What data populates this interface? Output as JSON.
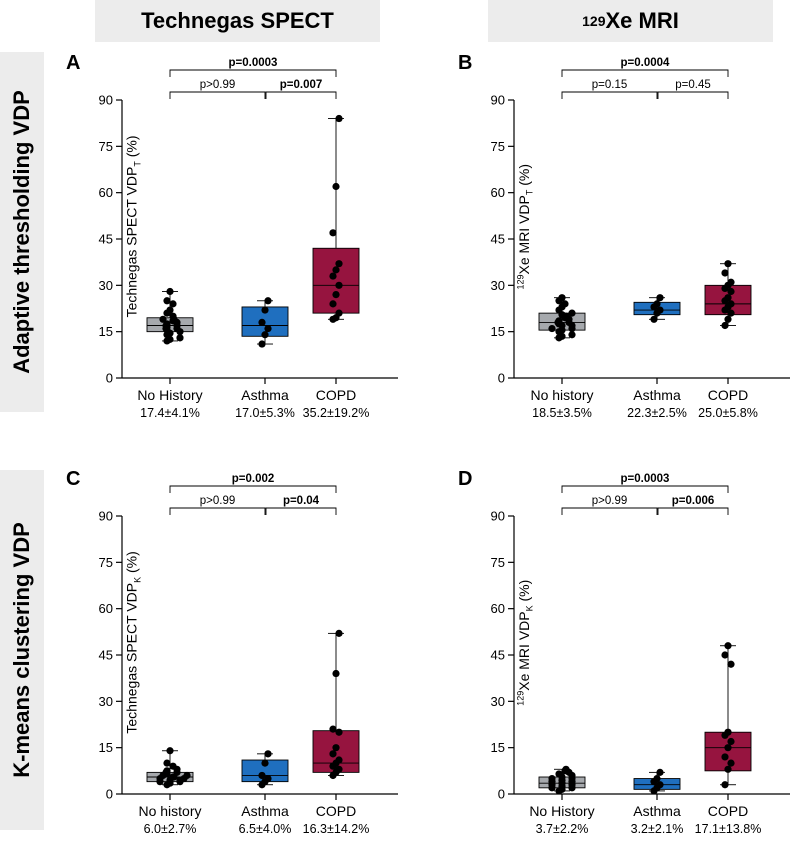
{
  "headers": {
    "col1": "Technegas SPECT",
    "col2_sup": "129",
    "col2_rest": "Xe MRI",
    "row1": "Adaptive thresholding VDP",
    "row2": "K-means clustering VDP"
  },
  "colors": {
    "no_history": "#a6a9ad",
    "asthma": "#1f6fbf",
    "copd": "#96143f",
    "header_bg": "#ececec"
  },
  "chart_data": [
    {
      "type": "boxplot",
      "panel": "A",
      "ylabel_main": "Technegas SPECT VDP",
      "ylabel_sub": "T",
      "ylabel_sup": "",
      "ylabel_end": " (%)",
      "ylim": [
        0,
        90
      ],
      "yticks": [
        "0",
        "15",
        "30",
        "45",
        "60",
        "75",
        "90"
      ],
      "categories": [
        "No History",
        "Asthma",
        "COPD"
      ],
      "stats": [
        "17.4±4.1%",
        "17.0±5.3%",
        "35.2±19.2%"
      ],
      "boxes": [
        {
          "min": 12,
          "q1": 15,
          "median": 17,
          "q3": 19.5,
          "max": 28,
          "points": [
            12,
            12.5,
            13,
            14,
            14.5,
            15,
            15.5,
            16,
            16,
            16.5,
            17,
            17,
            17.5,
            18,
            18.5,
            19,
            19,
            20,
            21,
            22,
            24,
            25,
            28
          ]
        },
        {
          "min": 11,
          "q1": 13.5,
          "median": 17,
          "q3": 23,
          "max": 25,
          "points": [
            11,
            14,
            16,
            18,
            22,
            25
          ]
        },
        {
          "min": 19,
          "q1": 21,
          "median": 30,
          "q3": 42,
          "max": 84,
          "points": [
            19,
            19.5,
            21,
            24,
            27,
            30,
            33,
            35,
            37,
            47,
            62,
            84
          ]
        }
      ],
      "brackets": [
        {
          "from": 0,
          "to": 2,
          "label": "p=0.0003",
          "bold": true,
          "level": 2
        },
        {
          "from": 0,
          "to": 1,
          "label": "p>0.99",
          "bold": false,
          "level": 1
        },
        {
          "from": 1,
          "to": 2,
          "label": "p=0.007",
          "bold": true,
          "level": 1
        }
      ]
    },
    {
      "type": "boxplot",
      "panel": "B",
      "ylabel_main": "Xe MRI VDP",
      "ylabel_sub": "T",
      "ylabel_sup": "129",
      "ylabel_end": " (%)",
      "ylim": [
        0,
        90
      ],
      "yticks": [
        "0",
        "15",
        "30",
        "45",
        "60",
        "75",
        "90"
      ],
      "categories": [
        "No history",
        "Asthma",
        "COPD"
      ],
      "stats": [
        "18.5±3.5%",
        "22.3±2.5%",
        "25.0±5.8%"
      ],
      "boxes": [
        {
          "min": 13,
          "q1": 15.5,
          "median": 18,
          "q3": 21,
          "max": 26,
          "points": [
            13,
            13.5,
            14,
            15,
            15.5,
            16,
            16,
            17,
            17,
            17.5,
            18,
            18,
            18.5,
            19,
            19.5,
            20,
            20.5,
            21,
            22,
            23,
            24,
            25,
            26
          ]
        },
        {
          "min": 19,
          "q1": 20.5,
          "median": 22,
          "q3": 24.5,
          "max": 26,
          "points": [
            19,
            21,
            22,
            23,
            24,
            26
          ]
        },
        {
          "min": 17,
          "q1": 20.5,
          "median": 24,
          "q3": 30,
          "max": 37,
          "points": [
            17,
            19,
            21,
            22,
            23,
            24,
            25,
            26,
            28,
            29,
            30,
            31,
            34,
            37
          ]
        }
      ],
      "brackets": [
        {
          "from": 0,
          "to": 2,
          "label": "p=0.0004",
          "bold": true,
          "level": 2
        },
        {
          "from": 0,
          "to": 1,
          "label": "p=0.15",
          "bold": false,
          "level": 1
        },
        {
          "from": 1,
          "to": 2,
          "label": "p=0.45",
          "bold": false,
          "level": 1
        }
      ]
    },
    {
      "type": "boxplot",
      "panel": "C",
      "ylabel_main": "Technegas SPECT VDP",
      "ylabel_sub": "K",
      "ylabel_sup": "",
      "ylabel_end": " (%)",
      "ylim": [
        0,
        90
      ],
      "yticks": [
        "0",
        "15",
        "30",
        "45",
        "60",
        "75",
        "90"
      ],
      "categories": [
        "No history",
        "Asthma",
        "COPD"
      ],
      "stats": [
        "6.0±2.7%",
        "6.5±4.0%",
        "16.3±14.2%"
      ],
      "boxes": [
        {
          "min": 3,
          "q1": 4,
          "median": 5.5,
          "q3": 7,
          "max": 14,
          "points": [
            3,
            3.5,
            4,
            4,
            4.5,
            4.5,
            5,
            5,
            5.5,
            5.5,
            6,
            6,
            6.5,
            7,
            7,
            7.5,
            8,
            9,
            10,
            14
          ]
        },
        {
          "min": 3,
          "q1": 4,
          "median": 6,
          "q3": 11,
          "max": 13,
          "points": [
            3,
            4,
            5,
            6,
            10,
            13
          ]
        },
        {
          "min": 6,
          "q1": 7,
          "median": 10,
          "q3": 20.5,
          "max": 52,
          "points": [
            6,
            7,
            8,
            9,
            10,
            11,
            13,
            15,
            20,
            21,
            39,
            52
          ]
        }
      ],
      "brackets": [
        {
          "from": 0,
          "to": 2,
          "label": "p=0.002",
          "bold": true,
          "level": 2
        },
        {
          "from": 0,
          "to": 1,
          "label": "p>0.99",
          "bold": false,
          "level": 1
        },
        {
          "from": 1,
          "to": 2,
          "label": "p=0.04",
          "bold": true,
          "level": 1
        }
      ]
    },
    {
      "type": "boxplot",
      "panel": "D",
      "ylabel_main": "Xe MRI VDP",
      "ylabel_sub": "K",
      "ylabel_sup": "129",
      "ylabel_end": " (%)",
      "ylim": [
        0,
        90
      ],
      "yticks": [
        "0",
        "15",
        "30",
        "45",
        "60",
        "75",
        "90"
      ],
      "categories": [
        "No History",
        "Asthma",
        "COPD"
      ],
      "stats": [
        "3.7±2.2%",
        "3.2±2.1%",
        "17.1±13.8%"
      ],
      "boxes": [
        {
          "min": 1,
          "q1": 2,
          "median": 3.5,
          "q3": 5.5,
          "max": 8,
          "points": [
            1,
            1.5,
            2,
            2,
            2.5,
            3,
            3,
            3.5,
            4,
            4,
            4.5,
            5,
            5,
            5.5,
            6,
            6.5,
            7,
            7.5,
            8
          ]
        },
        {
          "min": 1,
          "q1": 1.5,
          "median": 3,
          "q3": 5,
          "max": 7,
          "points": [
            1,
            2,
            3,
            4,
            5,
            7
          ]
        },
        {
          "min": 3,
          "q1": 7.5,
          "median": 15,
          "q3": 20,
          "max": 48,
          "points": [
            3,
            8,
            10,
            12,
            15,
            17,
            19,
            20,
            42,
            45,
            48
          ]
        }
      ],
      "brackets": [
        {
          "from": 0,
          "to": 2,
          "label": "p=0.0003",
          "bold": true,
          "level": 2
        },
        {
          "from": 0,
          "to": 1,
          "label": "p>0.99",
          "bold": false,
          "level": 1
        },
        {
          "from": 1,
          "to": 2,
          "label": "p=0.006",
          "bold": true,
          "level": 1
        }
      ]
    }
  ]
}
